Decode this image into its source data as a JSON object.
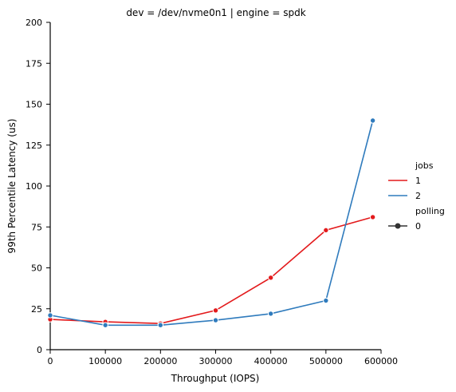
{
  "chart_data": {
    "type": "line",
    "title": "dev = /dev/nvme0n1 | engine = spdk",
    "xlabel": "Throughput (IOPS)",
    "ylabel": "99th Percentile Latency (us)",
    "xlim": [
      0,
      600000
    ],
    "ylim": [
      0,
      200
    ],
    "x_ticks": [
      0,
      100000,
      200000,
      300000,
      400000,
      500000,
      600000
    ],
    "y_ticks": [
      0,
      25,
      50,
      75,
      100,
      125,
      150,
      175,
      200
    ],
    "grid": false,
    "legend": {
      "placement": "right",
      "jobs_title": "jobs",
      "jobs_entries": [
        "1",
        "2"
      ],
      "polling_title": "polling",
      "polling_entries": [
        "0"
      ]
    },
    "series": [
      {
        "name": "1",
        "color": "#e31a1c",
        "x": [
          0,
          100000,
          200000,
          300000,
          400000,
          500000,
          585000
        ],
        "y": [
          18.5,
          17,
          16,
          24,
          44,
          73,
          81
        ]
      },
      {
        "name": "2",
        "color": "#2f7bbd",
        "x": [
          0,
          100000,
          200000,
          300000,
          400000,
          500000,
          585000
        ],
        "y": [
          21,
          15,
          15,
          18,
          22,
          30,
          140
        ]
      }
    ],
    "polling_marker_color": "#333333"
  }
}
